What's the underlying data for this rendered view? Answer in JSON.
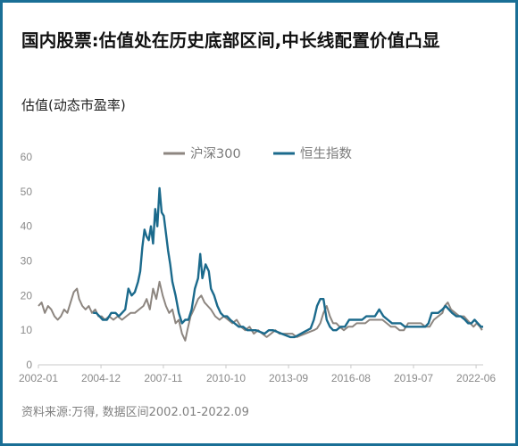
{
  "title": "国内股票:估值处在历史底部区间,中长线配置价值凸显",
  "subtitle": "估值(动态市盈率)",
  "source": "资料来源:万得, 数据区间2002.01-2022.09",
  "colors": {
    "frame": "#1a6f96",
    "hs300": "#8d8680",
    "hsi": "#1b6a8c"
  },
  "chart_data": {
    "type": "line",
    "title": "",
    "xlabel": "",
    "ylabel": "",
    "ylim": [
      0,
      60
    ],
    "yticks": [
      0,
      10,
      20,
      30,
      40,
      50,
      60
    ],
    "xlim": [
      2002.0,
      2022.75
    ],
    "xtick_labels": [
      "2002-01",
      "2004-12",
      "2007-11",
      "2010-10",
      "2013-09",
      "2016-08",
      "2019-07",
      "2022-06"
    ],
    "xtick_values": [
      2002.0,
      2004.92,
      2007.83,
      2010.75,
      2013.67,
      2016.58,
      2019.5,
      2022.42
    ],
    "grid": false,
    "legend": "top-center",
    "series": [
      {
        "name": "沪深300",
        "color": "#8d8680",
        "points": [
          [
            2002.0,
            17
          ],
          [
            2002.15,
            18
          ],
          [
            2002.3,
            15
          ],
          [
            2002.45,
            17
          ],
          [
            2002.6,
            16
          ],
          [
            2002.75,
            14
          ],
          [
            2002.9,
            13
          ],
          [
            2003.05,
            14
          ],
          [
            2003.2,
            16
          ],
          [
            2003.35,
            15
          ],
          [
            2003.5,
            18
          ],
          [
            2003.65,
            21
          ],
          [
            2003.8,
            22
          ],
          [
            2003.9,
            19
          ],
          [
            2004.05,
            17
          ],
          [
            2004.2,
            16
          ],
          [
            2004.35,
            17
          ],
          [
            2004.5,
            15
          ],
          [
            2004.65,
            16
          ],
          [
            2004.8,
            14
          ],
          [
            2004.95,
            14
          ],
          [
            2005.1,
            13
          ],
          [
            2005.3,
            14
          ],
          [
            2005.5,
            13
          ],
          [
            2005.7,
            14
          ],
          [
            2005.9,
            13
          ],
          [
            2006.1,
            14
          ],
          [
            2006.3,
            15
          ],
          [
            2006.5,
            15
          ],
          [
            2006.7,
            16
          ],
          [
            2006.9,
            17
          ],
          [
            2007.05,
            19
          ],
          [
            2007.2,
            16
          ],
          [
            2007.35,
            22
          ],
          [
            2007.5,
            19
          ],
          [
            2007.65,
            24
          ],
          [
            2007.8,
            20
          ],
          [
            2007.95,
            17
          ],
          [
            2008.1,
            15
          ],
          [
            2008.25,
            16
          ],
          [
            2008.4,
            12
          ],
          [
            2008.55,
            13
          ],
          [
            2008.7,
            9
          ],
          [
            2008.85,
            7
          ],
          [
            2008.95,
            10
          ],
          [
            2009.1,
            14
          ],
          [
            2009.25,
            16
          ],
          [
            2009.45,
            19
          ],
          [
            2009.6,
            20
          ],
          [
            2009.75,
            18
          ],
          [
            2009.9,
            17
          ],
          [
            2010.05,
            16
          ],
          [
            2010.25,
            14
          ],
          [
            2010.45,
            13
          ],
          [
            2010.65,
            14
          ],
          [
            2010.85,
            13
          ],
          [
            2011.05,
            12
          ],
          [
            2011.25,
            13
          ],
          [
            2011.45,
            11
          ],
          [
            2011.65,
            10
          ],
          [
            2011.85,
            11
          ],
          [
            2012.05,
            9
          ],
          [
            2012.25,
            10
          ],
          [
            2012.45,
            9
          ],
          [
            2012.65,
            8
          ],
          [
            2012.85,
            9
          ],
          [
            2013.05,
            10
          ],
          [
            2013.25,
            9
          ],
          [
            2013.45,
            9
          ],
          [
            2013.65,
            9
          ],
          [
            2013.85,
            9
          ],
          [
            2014.05,
            8
          ],
          [
            2014.25,
            8.5
          ],
          [
            2014.45,
            9
          ],
          [
            2014.65,
            9.5
          ],
          [
            2014.85,
            10
          ],
          [
            2015.0,
            10.5
          ],
          [
            2015.15,
            12
          ],
          [
            2015.3,
            15
          ],
          [
            2015.45,
            17
          ],
          [
            2015.6,
            14
          ],
          [
            2015.75,
            12
          ],
          [
            2015.9,
            12
          ],
          [
            2016.05,
            11
          ],
          [
            2016.25,
            10
          ],
          [
            2016.45,
            11
          ],
          [
            2016.65,
            11
          ],
          [
            2016.85,
            12
          ],
          [
            2017.05,
            12
          ],
          [
            2017.25,
            12
          ],
          [
            2017.45,
            13
          ],
          [
            2017.65,
            13
          ],
          [
            2017.85,
            13
          ],
          [
            2018.05,
            13
          ],
          [
            2018.25,
            12
          ],
          [
            2018.45,
            11
          ],
          [
            2018.65,
            11
          ],
          [
            2018.85,
            10
          ],
          [
            2019.05,
            10
          ],
          [
            2019.25,
            12
          ],
          [
            2019.45,
            12
          ],
          [
            2019.65,
            12
          ],
          [
            2019.85,
            12
          ],
          [
            2020.05,
            11
          ],
          [
            2020.25,
            11
          ],
          [
            2020.45,
            13
          ],
          [
            2020.65,
            14
          ],
          [
            2020.85,
            15
          ],
          [
            2020.95,
            17
          ],
          [
            2021.1,
            18
          ],
          [
            2021.25,
            16
          ],
          [
            2021.45,
            15
          ],
          [
            2021.65,
            14
          ],
          [
            2021.85,
            14
          ],
          [
            2022.0,
            13
          ],
          [
            2022.15,
            12
          ],
          [
            2022.3,
            11
          ],
          [
            2022.45,
            12
          ],
          [
            2022.6,
            11
          ],
          [
            2022.7,
            10
          ]
        ]
      },
      {
        "name": "恒生指数",
        "color": "#1b6a8c",
        "points": [
          [
            2004.55,
            15
          ],
          [
            2004.7,
            15
          ],
          [
            2004.85,
            14
          ],
          [
            2005.0,
            13
          ],
          [
            2005.2,
            13
          ],
          [
            2005.4,
            15
          ],
          [
            2005.6,
            15
          ],
          [
            2005.75,
            14
          ],
          [
            2005.9,
            15
          ],
          [
            2006.05,
            16
          ],
          [
            2006.2,
            22
          ],
          [
            2006.35,
            20
          ],
          [
            2006.5,
            21
          ],
          [
            2006.65,
            24
          ],
          [
            2006.75,
            27
          ],
          [
            2006.85,
            34
          ],
          [
            2006.95,
            39
          ],
          [
            2007.05,
            37
          ],
          [
            2007.15,
            36
          ],
          [
            2007.25,
            40
          ],
          [
            2007.35,
            35
          ],
          [
            2007.45,
            45
          ],
          [
            2007.55,
            40
          ],
          [
            2007.65,
            51
          ],
          [
            2007.75,
            44
          ],
          [
            2007.85,
            43
          ],
          [
            2007.95,
            38
          ],
          [
            2008.05,
            33
          ],
          [
            2008.15,
            29
          ],
          [
            2008.25,
            24
          ],
          [
            2008.4,
            20
          ],
          [
            2008.55,
            15
          ],
          [
            2008.7,
            12
          ],
          [
            2008.85,
            13
          ],
          [
            2009.0,
            13
          ],
          [
            2009.15,
            16
          ],
          [
            2009.3,
            22
          ],
          [
            2009.45,
            25
          ],
          [
            2009.55,
            32
          ],
          [
            2009.65,
            25
          ],
          [
            2009.8,
            29
          ],
          [
            2009.95,
            27
          ],
          [
            2010.05,
            22
          ],
          [
            2010.2,
            20
          ],
          [
            2010.35,
            17
          ],
          [
            2010.5,
            15
          ],
          [
            2010.65,
            14
          ],
          [
            2010.8,
            14
          ],
          [
            2010.95,
            13
          ],
          [
            2011.15,
            12
          ],
          [
            2011.35,
            11
          ],
          [
            2011.55,
            11
          ],
          [
            2011.75,
            10
          ],
          [
            2011.95,
            10
          ],
          [
            2012.15,
            10
          ],
          [
            2012.35,
            9.5
          ],
          [
            2012.55,
            9
          ],
          [
            2012.75,
            10
          ],
          [
            2012.95,
            10
          ],
          [
            2013.15,
            9.5
          ],
          [
            2013.35,
            9
          ],
          [
            2013.55,
            8.5
          ],
          [
            2013.75,
            8
          ],
          [
            2013.95,
            8
          ],
          [
            2014.1,
            8.5
          ],
          [
            2014.25,
            9
          ],
          [
            2014.4,
            9.5
          ],
          [
            2014.55,
            10
          ],
          [
            2014.7,
            10.5
          ],
          [
            2014.85,
            13
          ],
          [
            2015.0,
            17
          ],
          [
            2015.15,
            19
          ],
          [
            2015.3,
            19
          ],
          [
            2015.45,
            13
          ],
          [
            2015.6,
            11
          ],
          [
            2015.75,
            10
          ],
          [
            2015.9,
            10
          ],
          [
            2016.1,
            11
          ],
          [
            2016.3,
            11
          ],
          [
            2016.5,
            13
          ],
          [
            2016.7,
            13
          ],
          [
            2016.9,
            13
          ],
          [
            2017.1,
            13
          ],
          [
            2017.3,
            14
          ],
          [
            2017.5,
            14
          ],
          [
            2017.7,
            14
          ],
          [
            2017.9,
            16
          ],
          [
            2018.1,
            14
          ],
          [
            2018.3,
            13
          ],
          [
            2018.5,
            12
          ],
          [
            2018.7,
            12
          ],
          [
            2018.9,
            12
          ],
          [
            2019.1,
            11
          ],
          [
            2019.3,
            11
          ],
          [
            2019.5,
            11
          ],
          [
            2019.7,
            11
          ],
          [
            2019.9,
            11
          ],
          [
            2020.05,
            11
          ],
          [
            2020.2,
            12
          ],
          [
            2020.35,
            15
          ],
          [
            2020.5,
            15
          ],
          [
            2020.65,
            15
          ],
          [
            2020.85,
            16
          ],
          [
            2021.0,
            17
          ],
          [
            2021.15,
            16
          ],
          [
            2021.3,
            15
          ],
          [
            2021.5,
            14
          ],
          [
            2021.7,
            14
          ],
          [
            2021.9,
            13
          ],
          [
            2022.05,
            12
          ],
          [
            2022.2,
            12
          ],
          [
            2022.35,
            13
          ],
          [
            2022.5,
            12
          ],
          [
            2022.65,
            11
          ],
          [
            2022.75,
            11
          ]
        ]
      }
    ]
  }
}
